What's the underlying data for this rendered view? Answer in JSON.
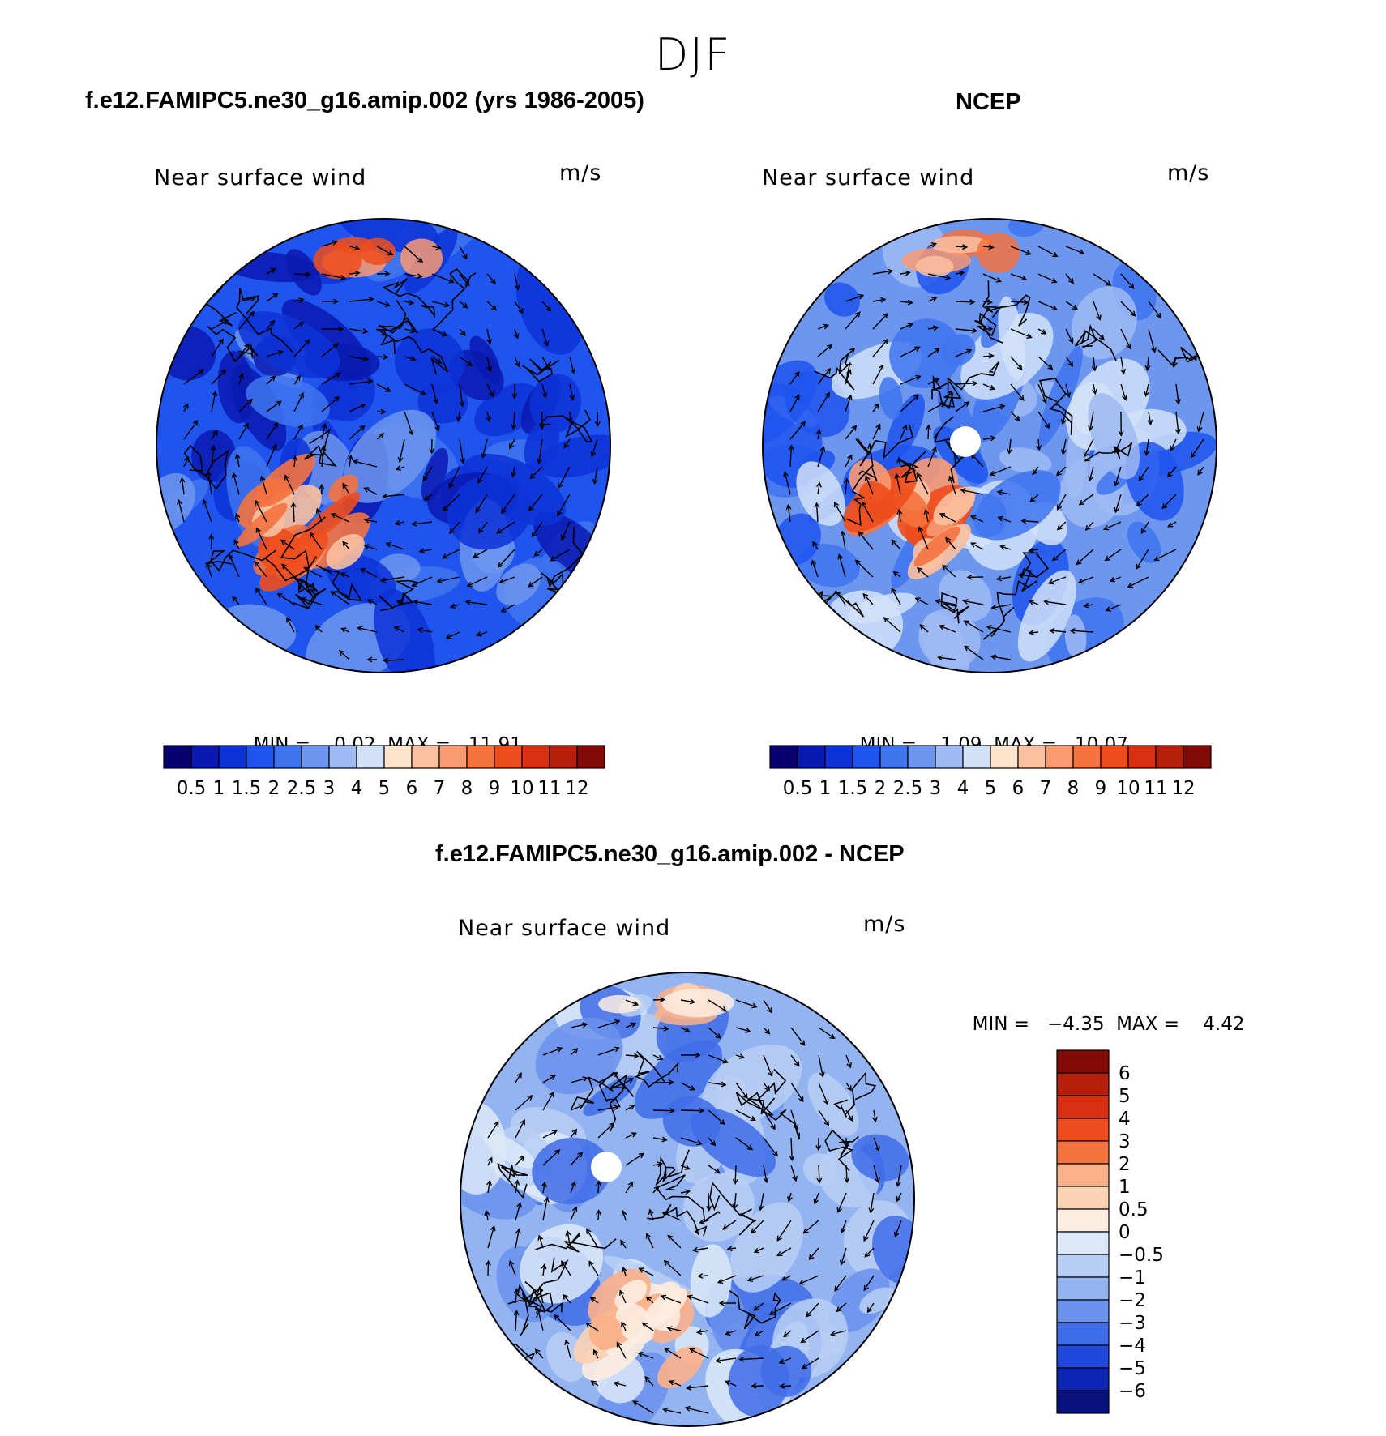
{
  "figure": {
    "season": "DJF",
    "panel_titles": {
      "model": "f.e12.FAMIPC5.ne30_g16.amip.002 (yrs 1986-2005)",
      "obs": "NCEP",
      "diff": "f.e12.FAMIPC5.ne30_g16.amip.002 - NCEP"
    }
  },
  "chart_data": [
    {
      "type": "heatmap",
      "subtype": "polar-stereographic-vector-map",
      "title": "Near surface wind",
      "units": "m/s",
      "min_label": "MIN =",
      "min_value": "0.02",
      "max_label": "MAX =",
      "max_value": "11.91",
      "colorbar_levels": [
        "0.5",
        "1",
        "1.5",
        "2",
        "2.5",
        "3",
        "4",
        "5",
        "6",
        "7",
        "8",
        "9",
        "10",
        "11",
        "12"
      ],
      "colorbar_colors": [
        "#08006e",
        "#0a1ab0",
        "#0d33d8",
        "#1f55ee",
        "#3f74ee",
        "#6d96ee",
        "#9fbaf3",
        "#d1e2f8",
        "#fde2cc",
        "#fbc09f",
        "#f99a72",
        "#f5723f",
        "#ee4c1c",
        "#d82f10",
        "#b51f0c",
        "#820a06"
      ]
    },
    {
      "type": "heatmap",
      "subtype": "polar-stereographic-vector-map",
      "title": "Near surface wind",
      "units": "m/s",
      "min_label": "MIN =",
      "min_value": "1.09",
      "max_label": "MAX =",
      "max_value": "10.07",
      "colorbar_levels": [
        "0.5",
        "1",
        "1.5",
        "2",
        "2.5",
        "3",
        "4",
        "5",
        "6",
        "7",
        "8",
        "9",
        "10",
        "11",
        "12"
      ],
      "colorbar_colors": [
        "#08006e",
        "#0a1ab0",
        "#0d33d8",
        "#1f55ee",
        "#3f74ee",
        "#6d96ee",
        "#9fbaf3",
        "#d1e2f8",
        "#fde2cc",
        "#fbc09f",
        "#f99a72",
        "#f5723f",
        "#ee4c1c",
        "#d82f10",
        "#b51f0c",
        "#820a06"
      ]
    },
    {
      "type": "heatmap",
      "subtype": "polar-stereographic-vector-map-difference",
      "title": "Near surface wind",
      "units": "m/s",
      "min_label": "MIN =",
      "min_value": "−4.35",
      "max_label": "MAX =",
      "max_value": "4.42",
      "colorbar_levels": [
        "6",
        "5",
        "4",
        "3",
        "2",
        "1",
        "0.5",
        "0",
        "−0.5",
        "−1",
        "−2",
        "−3",
        "−4",
        "−5",
        "−6"
      ],
      "colorbar_colors": [
        "#820a06",
        "#b51f0c",
        "#d82f10",
        "#ee4c1c",
        "#f5723f",
        "#fbb08a",
        "#fcd2b4",
        "#fdece0",
        "#dce9f8",
        "#b8cff5",
        "#93b3f1",
        "#6a91ec",
        "#3f6ce8",
        "#1f47dc",
        "#0b26b5",
        "#07117f"
      ]
    }
  ]
}
